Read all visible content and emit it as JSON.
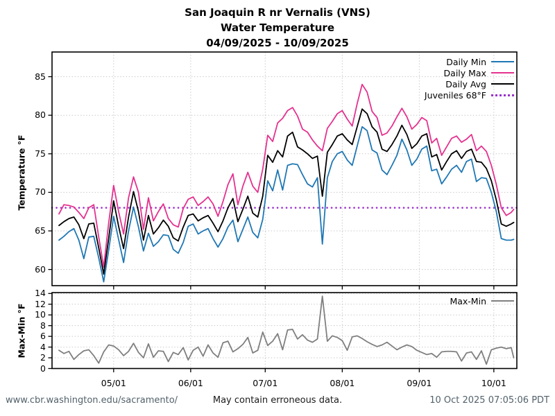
{
  "title": {
    "line1": "San Joaquin R nr Vernalis (VNS)",
    "line2": "Water Temperature",
    "line3": "04/09/2025 - 10/09/2025"
  },
  "footer": {
    "left": "www.cbr.washington.edu/sacramento/",
    "center": "May contain erroneous data.",
    "right": "10 Oct 2025 07:05:06 PDT"
  },
  "chart_data": [
    {
      "type": "line",
      "title": "San Joaquin R nr Vernalis (VNS) Water Temperature 04/09/2025 - 10/09/2025",
      "xlabel": "",
      "ylabel": "Temperature °F",
      "ylim": [
        57.9,
        88.2
      ],
      "yticks": [
        60,
        65,
        70,
        75,
        80,
        85
      ],
      "grid": true,
      "legend_position": "upper right",
      "total_days": 183,
      "sample_step": 2,
      "xticks": [
        {
          "label": "05/01",
          "day": 22
        },
        {
          "label": "06/01",
          "day": 53
        },
        {
          "label": "07/01",
          "day": 83
        },
        {
          "label": "08/01",
          "day": 114
        },
        {
          "label": "09/01",
          "day": 145
        },
        {
          "label": "10/01",
          "day": 175
        }
      ],
      "dates": [
        "04/09",
        "04/11",
        "04/13",
        "04/15",
        "04/17",
        "04/19",
        "04/21",
        "04/23",
        "04/25",
        "04/27",
        "04/29",
        "05/01",
        "05/03",
        "05/05",
        "05/07",
        "05/09",
        "05/11",
        "05/13",
        "05/15",
        "05/17",
        "05/19",
        "05/21",
        "05/23",
        "05/25",
        "05/27",
        "05/29",
        "05/31",
        "06/02",
        "06/04",
        "06/06",
        "06/08",
        "06/10",
        "06/12",
        "06/14",
        "06/16",
        "06/18",
        "06/20",
        "06/22",
        "06/24",
        "06/26",
        "06/28",
        "06/30",
        "07/02",
        "07/04",
        "07/06",
        "07/08",
        "07/10",
        "07/12",
        "07/14",
        "07/16",
        "07/18",
        "07/20",
        "07/22",
        "07/24",
        "07/26",
        "07/28",
        "07/30",
        "08/01",
        "08/03",
        "08/05",
        "08/07",
        "08/09",
        "08/11",
        "08/13",
        "08/15",
        "08/17",
        "08/19",
        "08/21",
        "08/23",
        "08/25",
        "08/27",
        "08/29",
        "08/31",
        "09/02",
        "09/04",
        "09/06",
        "09/08",
        "09/10",
        "09/12",
        "09/14",
        "09/16",
        "09/18",
        "09/20",
        "09/22",
        "09/24",
        "09/26",
        "09/28",
        "09/30",
        "10/02",
        "10/04",
        "10/06",
        "10/08",
        "10/09"
      ],
      "series": [
        {
          "name": "Daily Min",
          "color": "#1f77b4",
          "style": "solid",
          "values": [
            63.8,
            64.3,
            64.9,
            65.3,
            63.8,
            61.4,
            64.2,
            64.3,
            61.5,
            58.4,
            62.5,
            66.9,
            63.9,
            60.9,
            65.0,
            68.1,
            65.5,
            62.4,
            64.7,
            63.0,
            63.6,
            64.5,
            64.4,
            62.6,
            62.1,
            63.5,
            65.6,
            65.9,
            64.6,
            65.0,
            65.3,
            64.0,
            62.9,
            64.0,
            65.5,
            66.4,
            63.6,
            65.2,
            66.8,
            64.8,
            64.1,
            66.5,
            71.5,
            70.2,
            72.9,
            70.3,
            73.5,
            73.7,
            73.6,
            72.3,
            71.1,
            70.7,
            71.9,
            63.3,
            71.9,
            74.0,
            75.0,
            75.3,
            74.2,
            73.5,
            76.0,
            78.5,
            78.0,
            75.5,
            75.1,
            72.9,
            72.3,
            73.5,
            74.8,
            76.9,
            75.5,
            73.5,
            74.3,
            75.6,
            76.0,
            72.8,
            73.0,
            71.1,
            72.0,
            73.0,
            73.5,
            72.6,
            74.0,
            74.3,
            71.4,
            71.9,
            71.8,
            70.0,
            67.5,
            64.0,
            63.8,
            63.8,
            63.9
          ]
        },
        {
          "name": "Daily Max",
          "color": "#e5318f",
          "style": "solid",
          "values": [
            67.2,
            68.4,
            68.3,
            68.1,
            67.4,
            66.6,
            68.0,
            68.4,
            64.2,
            60.3,
            66.0,
            70.9,
            67.5,
            64.6,
            69.3,
            72.0,
            70.0,
            65.2,
            69.3,
            66.3,
            67.5,
            68.5,
            66.6,
            65.8,
            65.5,
            67.9,
            69.1,
            69.4,
            68.3,
            68.8,
            69.4,
            68.5,
            66.9,
            68.8,
            71.0,
            72.4,
            68.4,
            70.8,
            72.6,
            70.8,
            70.0,
            73.0,
            77.4,
            76.6,
            79.0,
            79.6,
            80.6,
            81.0,
            79.9,
            78.2,
            77.8,
            76.8,
            76.0,
            75.4,
            78.3,
            79.2,
            80.2,
            80.6,
            79.5,
            78.6,
            81.5,
            84.0,
            83.0,
            80.5,
            79.7,
            77.4,
            77.7,
            78.6,
            79.8,
            80.9,
            79.8,
            78.2,
            78.8,
            79.7,
            79.3,
            76.4,
            77.0,
            74.8,
            75.9,
            77.0,
            77.3,
            76.5,
            76.9,
            77.5,
            75.4,
            76.0,
            75.3,
            73.5,
            71.0,
            68.0,
            67.0,
            67.4,
            67.8
          ]
        },
        {
          "name": "Daily Avg",
          "color": "#000000",
          "style": "solid",
          "values": [
            65.7,
            66.2,
            66.6,
            66.8,
            65.8,
            64.0,
            65.9,
            66.0,
            62.8,
            59.4,
            64.0,
            68.9,
            65.6,
            62.7,
            66.8,
            70.1,
            67.5,
            63.8,
            67.0,
            64.6,
            65.4,
            66.4,
            65.6,
            64.1,
            63.7,
            65.5,
            67.0,
            67.2,
            66.3,
            66.7,
            67.0,
            66.0,
            64.9,
            66.3,
            68.0,
            69.2,
            66.2,
            67.8,
            69.5,
            67.3,
            66.8,
            69.5,
            74.8,
            73.9,
            75.4,
            74.6,
            77.3,
            77.8,
            75.9,
            75.5,
            75.0,
            74.4,
            74.7,
            69.5,
            75.2,
            76.2,
            77.3,
            77.6,
            76.8,
            76.2,
            78.5,
            80.8,
            80.2,
            78.5,
            77.8,
            75.6,
            75.3,
            76.2,
            77.3,
            78.7,
            77.5,
            75.7,
            76.3,
            77.3,
            77.6,
            74.6,
            74.9,
            72.9,
            74.0,
            75.0,
            75.4,
            74.4,
            75.3,
            75.6,
            74.0,
            73.9,
            73.1,
            71.5,
            69.0,
            65.9,
            65.6,
            65.9,
            66.1
          ]
        },
        {
          "name": "Juveniles 68°F",
          "color": "#9b30cc",
          "style": "dotted",
          "value": 68
        }
      ]
    },
    {
      "type": "line",
      "xlabel": "",
      "ylabel": "Max-Min °F",
      "ylim": [
        0,
        14
      ],
      "yticks": [
        0,
        2,
        4,
        6,
        8,
        10,
        12,
        14
      ],
      "grid": true,
      "legend_position": "upper right",
      "series": [
        {
          "name": "Max-Min",
          "color": "#7f7f7f",
          "style": "solid",
          "values": [
            3.4,
            2.8,
            3.2,
            1.7,
            2.6,
            3.3,
            3.5,
            2.4,
            1.0,
            3.1,
            4.4,
            4.2,
            3.5,
            2.4,
            3.2,
            4.7,
            3.0,
            2.0,
            4.6,
            2.1,
            3.3,
            3.2,
            1.3,
            3.0,
            2.6,
            3.9,
            1.6,
            3.4,
            4.0,
            2.3,
            4.4,
            2.9,
            2.1,
            4.8,
            5.1,
            3.1,
            3.7,
            4.5,
            5.8,
            2.9,
            3.4,
            6.8,
            4.3,
            5.1,
            6.5,
            3.5,
            7.2,
            7.3,
            5.5,
            6.3,
            5.3,
            4.9,
            5.5,
            13.5,
            5.1,
            6.1,
            5.8,
            5.2,
            3.4,
            5.9,
            6.1,
            5.6,
            5.0,
            4.5,
            4.1,
            4.4,
            4.9,
            4.2,
            3.5,
            4.0,
            4.4,
            4.1,
            3.4,
            3.0,
            2.6,
            2.8,
            2.1,
            3.1,
            3.2,
            3.2,
            3.1,
            1.4,
            2.9,
            3.1,
            1.7,
            3.3,
            0.8,
            3.5,
            3.8,
            4.0,
            3.7,
            3.9,
            2.0
          ]
        }
      ]
    }
  ]
}
